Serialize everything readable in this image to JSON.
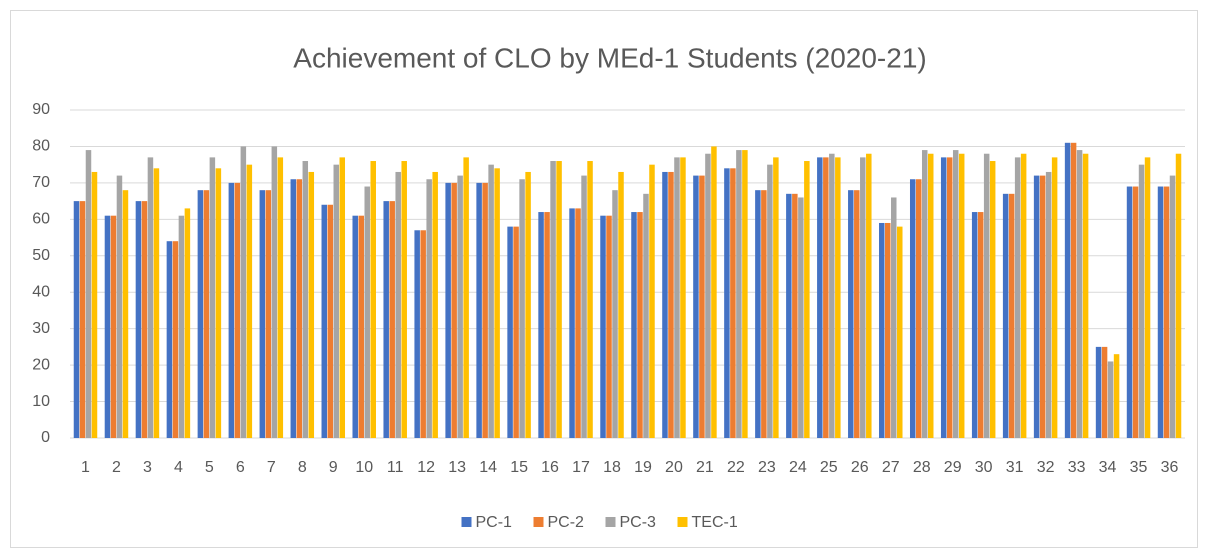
{
  "chart_data": {
    "type": "bar",
    "title": "Achievement of CLO by MEd-1 Students (2020-21)",
    "categories": [
      "1",
      "2",
      "3",
      "4",
      "5",
      "6",
      "7",
      "8",
      "9",
      "10",
      "11",
      "12",
      "13",
      "14",
      "15",
      "16",
      "17",
      "18",
      "19",
      "20",
      "21",
      "22",
      "23",
      "24",
      "25",
      "26",
      "27",
      "28",
      "29",
      "30",
      "31",
      "32",
      "33",
      "34",
      "35",
      "36"
    ],
    "series": [
      {
        "name": "PC-1",
        "color": "#4472c4",
        "values": [
          65,
          61,
          65,
          54,
          68,
          70,
          68,
          71,
          64,
          61,
          65,
          57,
          70,
          70,
          58,
          62,
          63,
          61,
          62,
          73,
          72,
          74,
          68,
          67,
          77,
          68,
          59,
          71,
          77,
          62,
          67,
          72,
          81,
          25,
          69,
          69
        ]
      },
      {
        "name": "PC-2",
        "color": "#ed7d31",
        "values": [
          65,
          61,
          65,
          54,
          68,
          70,
          68,
          71,
          64,
          61,
          65,
          57,
          70,
          70,
          58,
          62,
          63,
          61,
          62,
          73,
          72,
          74,
          68,
          67,
          77,
          68,
          59,
          71,
          77,
          62,
          67,
          72,
          81,
          25,
          69,
          69
        ]
      },
      {
        "name": "PC-3",
        "color": "#a5a5a5",
        "values": [
          79,
          72,
          77,
          61,
          77,
          80,
          80,
          76,
          75,
          69,
          73,
          71,
          72,
          75,
          71,
          76,
          72,
          68,
          67,
          77,
          78,
          79,
          75,
          66,
          78,
          77,
          66,
          79,
          79,
          78,
          77,
          73,
          79,
          21,
          75,
          72
        ]
      },
      {
        "name": "TEC-1",
        "color": "#ffc000",
        "values": [
          73,
          68,
          74,
          63,
          74,
          75,
          77,
          73,
          77,
          76,
          76,
          73,
          77,
          74,
          73,
          76,
          76,
          73,
          75,
          77,
          80,
          79,
          77,
          76,
          77,
          78,
          58,
          78,
          78,
          76,
          78,
          77,
          78,
          23,
          77,
          78
        ]
      }
    ],
    "ylim": [
      0,
      90
    ],
    "yticks": [
      0,
      10,
      20,
      30,
      40,
      50,
      60,
      70,
      80,
      90
    ],
    "grid": true,
    "legend": "bottom"
  }
}
